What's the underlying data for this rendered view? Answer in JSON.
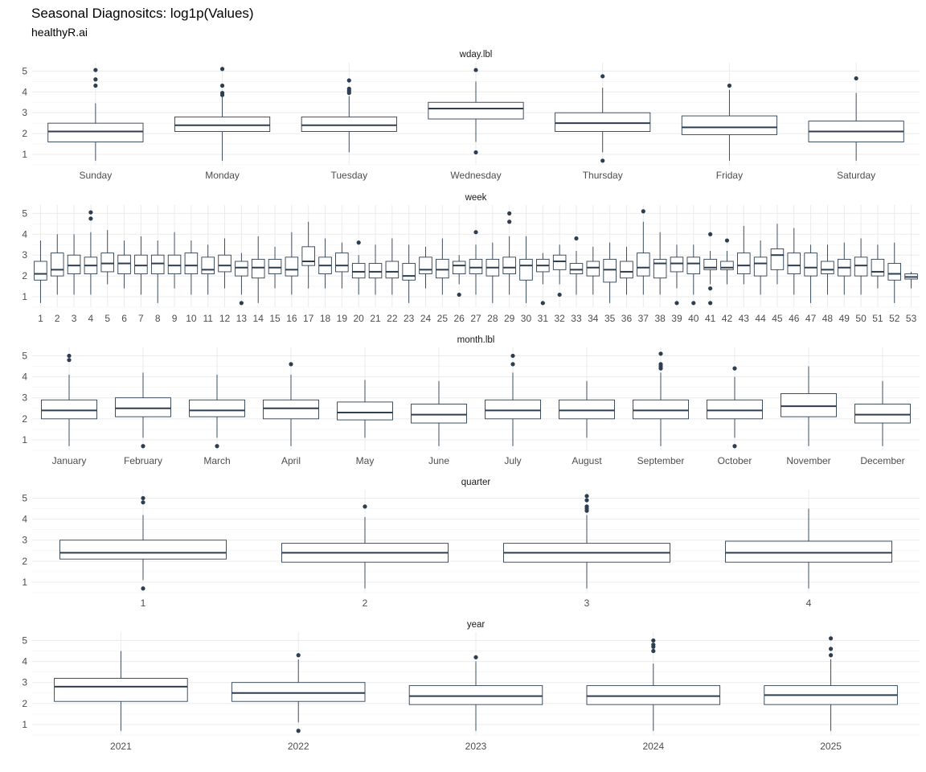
{
  "title": "Seasonal Diagnositcs: log1p(Values)",
  "subtitle": "healthyR.ai",
  "colors": {
    "box_stroke": "#2c3e50",
    "grid": "#ebebeb",
    "background": "#ffffff"
  },
  "chart_data": [
    {
      "type": "boxplot",
      "facet": "wday.lbl",
      "ylim": [
        0.5,
        5.4
      ],
      "yticks": [
        1,
        2,
        3,
        4,
        5
      ],
      "grid": true,
      "categories": [
        "Sunday",
        "Monday",
        "Tuesday",
        "Wednesday",
        "Thursday",
        "Friday",
        "Saturday"
      ],
      "boxes": [
        {
          "min": 0.7,
          "q1": 1.6,
          "median": 2.1,
          "q3": 2.5,
          "max": 3.45,
          "outliers": [
            4.3,
            4.6,
            5.05
          ]
        },
        {
          "min": 0.7,
          "q1": 2.1,
          "median": 2.4,
          "q3": 2.8,
          "max": 3.75,
          "outliers": [
            3.85,
            3.95,
            4.3,
            5.1
          ]
        },
        {
          "min": 1.1,
          "q1": 2.1,
          "median": 2.4,
          "q3": 2.8,
          "max": 3.8,
          "outliers": [
            3.95,
            4.05,
            4.15,
            4.55
          ]
        },
        {
          "min": 1.6,
          "q1": 2.7,
          "median": 3.2,
          "q3": 3.5,
          "max": 4.5,
          "outliers": [
            1.1,
            5.05
          ]
        },
        {
          "min": 1.1,
          "q1": 2.1,
          "median": 2.5,
          "q3": 3.0,
          "max": 4.2,
          "outliers": [
            0.7,
            4.75
          ]
        },
        {
          "min": 0.7,
          "q1": 1.95,
          "median": 2.3,
          "q3": 2.85,
          "max": 4.1,
          "outliers": [
            4.3
          ]
        },
        {
          "min": 0.7,
          "q1": 1.6,
          "median": 2.1,
          "q3": 2.6,
          "max": 3.95,
          "outliers": [
            4.65
          ]
        }
      ]
    },
    {
      "type": "boxplot",
      "facet": "week",
      "ylim": [
        0.5,
        5.4
      ],
      "yticks": [
        1,
        2,
        3,
        4,
        5
      ],
      "grid": true,
      "categories": [
        "1",
        "2",
        "3",
        "4",
        "5",
        "6",
        "7",
        "8",
        "9",
        "10",
        "11",
        "12",
        "13",
        "14",
        "15",
        "16",
        "17",
        "18",
        "19",
        "20",
        "21",
        "22",
        "23",
        "24",
        "25",
        "26",
        "27",
        "28",
        "29",
        "30",
        "31",
        "32",
        "33",
        "34",
        "35",
        "36",
        "37",
        "38",
        "39",
        "40",
        "41",
        "42",
        "43",
        "44",
        "45",
        "46",
        "47",
        "48",
        "49",
        "50",
        "51",
        "52",
        "53"
      ],
      "boxes": [
        {
          "min": 0.7,
          "q1": 1.8,
          "median": 2.1,
          "q3": 2.7,
          "max": 3.7,
          "outliers": []
        },
        {
          "min": 1.1,
          "q1": 2.0,
          "median": 2.3,
          "q3": 3.1,
          "max": 4.0,
          "outliers": []
        },
        {
          "min": 1.1,
          "q1": 2.1,
          "median": 2.5,
          "q3": 3.0,
          "max": 4.0,
          "outliers": []
        },
        {
          "min": 1.1,
          "q1": 2.1,
          "median": 2.5,
          "q3": 2.9,
          "max": 4.1,
          "outliers": [
            4.75,
            5.05
          ]
        },
        {
          "min": 1.6,
          "q1": 2.2,
          "median": 2.6,
          "q3": 3.1,
          "max": 4.2,
          "outliers": []
        },
        {
          "min": 1.4,
          "q1": 2.1,
          "median": 2.6,
          "q3": 3.0,
          "max": 3.7,
          "outliers": []
        },
        {
          "min": 1.1,
          "q1": 2.1,
          "median": 2.5,
          "q3": 3.0,
          "max": 3.9,
          "outliers": []
        },
        {
          "min": 0.7,
          "q1": 2.1,
          "median": 2.6,
          "q3": 3.0,
          "max": 3.7,
          "outliers": []
        },
        {
          "min": 1.4,
          "q1": 2.1,
          "median": 2.5,
          "q3": 3.0,
          "max": 4.1,
          "outliers": []
        },
        {
          "min": 1.1,
          "q1": 2.1,
          "median": 2.5,
          "q3": 3.1,
          "max": 3.7,
          "outliers": []
        },
        {
          "min": 1.1,
          "q1": 2.1,
          "median": 2.3,
          "q3": 2.9,
          "max": 3.5,
          "outliers": []
        },
        {
          "min": 1.4,
          "q1": 2.2,
          "median": 2.5,
          "q3": 3.0,
          "max": 3.8,
          "outliers": []
        },
        {
          "min": 1.1,
          "q1": 2.0,
          "median": 2.4,
          "q3": 2.7,
          "max": 3.1,
          "outliers": [
            0.7
          ]
        },
        {
          "min": 0.7,
          "q1": 1.9,
          "median": 2.4,
          "q3": 2.8,
          "max": 3.9,
          "outliers": []
        },
        {
          "min": 1.4,
          "q1": 2.1,
          "median": 2.4,
          "q3": 2.8,
          "max": 3.4,
          "outliers": []
        },
        {
          "min": 1.1,
          "q1": 2.0,
          "median": 2.3,
          "q3": 2.9,
          "max": 4.1,
          "outliers": []
        },
        {
          "min": 1.4,
          "q1": 2.5,
          "median": 2.7,
          "q3": 3.4,
          "max": 4.6,
          "outliers": []
        },
        {
          "min": 1.4,
          "q1": 2.1,
          "median": 2.5,
          "q3": 2.9,
          "max": 3.8,
          "outliers": []
        },
        {
          "min": 1.4,
          "q1": 2.2,
          "median": 2.5,
          "q3": 3.1,
          "max": 3.6,
          "outliers": []
        },
        {
          "min": 1.1,
          "q1": 1.9,
          "median": 2.2,
          "q3": 2.6,
          "max": 3.0,
          "outliers": [
            3.6
          ]
        },
        {
          "min": 1.1,
          "q1": 1.9,
          "median": 2.2,
          "q3": 2.6,
          "max": 3.5,
          "outliers": []
        },
        {
          "min": 1.1,
          "q1": 1.9,
          "median": 2.2,
          "q3": 2.7,
          "max": 3.8,
          "outliers": []
        },
        {
          "min": 0.7,
          "q1": 1.8,
          "median": 2.0,
          "q3": 2.6,
          "max": 3.5,
          "outliers": []
        },
        {
          "min": 1.4,
          "q1": 2.1,
          "median": 2.3,
          "q3": 2.9,
          "max": 3.4,
          "outliers": []
        },
        {
          "min": 1.1,
          "q1": 1.9,
          "median": 2.3,
          "q3": 2.8,
          "max": 3.8,
          "outliers": []
        },
        {
          "min": 1.6,
          "q1": 2.1,
          "median": 2.5,
          "q3": 2.7,
          "max": 3.0,
          "outliers": [
            1.1
          ]
        },
        {
          "min": 1.1,
          "q1": 2.1,
          "median": 2.4,
          "q3": 2.8,
          "max": 3.5,
          "outliers": [
            4.1
          ]
        },
        {
          "min": 0.7,
          "q1": 2.0,
          "median": 2.4,
          "q3": 2.8,
          "max": 3.6,
          "outliers": []
        },
        {
          "min": 1.1,
          "q1": 2.1,
          "median": 2.4,
          "q3": 2.9,
          "max": 3.9,
          "outliers": [
            4.6,
            5.0
          ]
        },
        {
          "min": 0.7,
          "q1": 1.8,
          "median": 2.5,
          "q3": 2.8,
          "max": 3.9,
          "outliers": []
        },
        {
          "min": 1.6,
          "q1": 2.2,
          "median": 2.5,
          "q3": 2.8,
          "max": 3.1,
          "outliers": [
            0.7
          ]
        },
        {
          "min": 1.6,
          "q1": 2.3,
          "median": 2.7,
          "q3": 3.0,
          "max": 3.5,
          "outliers": [
            1.1
          ]
        },
        {
          "min": 1.1,
          "q1": 2.1,
          "median": 2.3,
          "q3": 2.6,
          "max": 3.2,
          "outliers": [
            3.8
          ]
        },
        {
          "min": 1.1,
          "q1": 2.0,
          "median": 2.4,
          "q3": 2.7,
          "max": 3.4,
          "outliers": []
        },
        {
          "min": 0.7,
          "q1": 1.7,
          "median": 2.3,
          "q3": 2.8,
          "max": 3.6,
          "outliers": []
        },
        {
          "min": 1.1,
          "q1": 1.9,
          "median": 2.2,
          "q3": 2.7,
          "max": 3.4,
          "outliers": []
        },
        {
          "min": 1.1,
          "q1": 2.0,
          "median": 2.4,
          "q3": 3.1,
          "max": 4.6,
          "outliers": [
            5.1
          ]
        },
        {
          "min": 1.1,
          "q1": 1.9,
          "median": 2.6,
          "q3": 2.8,
          "max": 4.1,
          "outliers": []
        },
        {
          "min": 1.4,
          "q1": 2.2,
          "median": 2.6,
          "q3": 2.9,
          "max": 3.5,
          "outliers": [
            0.7
          ]
        },
        {
          "min": 1.1,
          "q1": 2.1,
          "median": 2.6,
          "q3": 2.9,
          "max": 3.5,
          "outliers": [
            0.7
          ]
        },
        {
          "min": 1.6,
          "q1": 2.3,
          "median": 2.4,
          "q3": 2.8,
          "max": 3.2,
          "outliers": [
            0.7,
            1.4,
            4.0
          ]
        },
        {
          "min": 1.6,
          "q1": 2.3,
          "median": 2.4,
          "q3": 2.7,
          "max": 3.2,
          "outliers": [
            3.7
          ]
        },
        {
          "min": 1.6,
          "q1": 2.1,
          "median": 2.5,
          "q3": 3.1,
          "max": 4.4,
          "outliers": []
        },
        {
          "min": 1.1,
          "q1": 2.0,
          "median": 2.6,
          "q3": 2.9,
          "max": 3.7,
          "outliers": []
        },
        {
          "min": 1.6,
          "q1": 2.3,
          "median": 3.0,
          "q3": 3.3,
          "max": 4.5,
          "outliers": []
        },
        {
          "min": 1.1,
          "q1": 2.1,
          "median": 2.5,
          "q3": 3.1,
          "max": 4.3,
          "outliers": []
        },
        {
          "min": 0.7,
          "q1": 2.0,
          "median": 2.4,
          "q3": 3.1,
          "max": 3.5,
          "outliers": []
        },
        {
          "min": 1.1,
          "q1": 2.1,
          "median": 2.3,
          "q3": 2.7,
          "max": 3.5,
          "outliers": []
        },
        {
          "min": 1.1,
          "q1": 2.0,
          "median": 2.4,
          "q3": 2.8,
          "max": 3.6,
          "outliers": []
        },
        {
          "min": 1.1,
          "q1": 2.0,
          "median": 2.5,
          "q3": 2.9,
          "max": 3.8,
          "outliers": []
        },
        {
          "min": 1.4,
          "q1": 2.0,
          "median": 2.2,
          "q3": 2.8,
          "max": 3.5,
          "outliers": []
        },
        {
          "min": 0.7,
          "q1": 1.8,
          "median": 2.1,
          "q3": 2.6,
          "max": 3.6,
          "outliers": []
        },
        {
          "min": 1.4,
          "q1": 1.85,
          "median": 1.95,
          "q3": 2.1,
          "max": 2.2,
          "outliers": []
        }
      ]
    },
    {
      "type": "boxplot",
      "facet": "month.lbl",
      "ylim": [
        0.5,
        5.4
      ],
      "yticks": [
        1,
        2,
        3,
        4,
        5
      ],
      "grid": true,
      "categories": [
        "January",
        "February",
        "March",
        "April",
        "May",
        "June",
        "July",
        "August",
        "September",
        "October",
        "November",
        "December"
      ],
      "boxes": [
        {
          "min": 0.7,
          "q1": 2.0,
          "median": 2.4,
          "q3": 2.9,
          "max": 4.1,
          "outliers": [
            4.8,
            5.0
          ]
        },
        {
          "min": 1.1,
          "q1": 2.1,
          "median": 2.5,
          "q3": 3.0,
          "max": 4.2,
          "outliers": [
            0.7
          ]
        },
        {
          "min": 1.1,
          "q1": 2.1,
          "median": 2.4,
          "q3": 2.9,
          "max": 4.1,
          "outliers": [
            0.7
          ]
        },
        {
          "min": 0.7,
          "q1": 2.0,
          "median": 2.5,
          "q3": 2.9,
          "max": 4.1,
          "outliers": [
            4.6
          ]
        },
        {
          "min": 1.1,
          "q1": 1.95,
          "median": 2.3,
          "q3": 2.8,
          "max": 3.85,
          "outliers": []
        },
        {
          "min": 0.7,
          "q1": 1.8,
          "median": 2.2,
          "q3": 2.7,
          "max": 3.8,
          "outliers": []
        },
        {
          "min": 0.7,
          "q1": 2.0,
          "median": 2.4,
          "q3": 2.9,
          "max": 4.2,
          "outliers": [
            4.6,
            5.0
          ]
        },
        {
          "min": 1.1,
          "q1": 2.0,
          "median": 2.4,
          "q3": 2.9,
          "max": 3.8,
          "outliers": []
        },
        {
          "min": 0.7,
          "q1": 2.0,
          "median": 2.4,
          "q3": 2.9,
          "max": 4.2,
          "outliers": [
            4.4,
            4.5,
            4.6,
            5.1
          ]
        },
        {
          "min": 1.1,
          "q1": 2.0,
          "median": 2.4,
          "q3": 2.9,
          "max": 4.0,
          "outliers": [
            0.7,
            4.4
          ]
        },
        {
          "min": 0.7,
          "q1": 2.1,
          "median": 2.6,
          "q3": 3.2,
          "max": 4.5,
          "outliers": []
        },
        {
          "min": 0.7,
          "q1": 1.8,
          "median": 2.2,
          "q3": 2.7,
          "max": 3.8,
          "outliers": []
        }
      ]
    },
    {
      "type": "boxplot",
      "facet": "quarter",
      "ylim": [
        0.5,
        5.4
      ],
      "yticks": [
        1,
        2,
        3,
        4,
        5
      ],
      "grid": true,
      "categories": [
        "1",
        "2",
        "3",
        "4"
      ],
      "boxes": [
        {
          "min": 1.1,
          "q1": 2.1,
          "median": 2.4,
          "q3": 3.0,
          "max": 4.2,
          "outliers": [
            0.7,
            4.8,
            5.0
          ]
        },
        {
          "min": 0.7,
          "q1": 1.95,
          "median": 2.4,
          "q3": 2.85,
          "max": 4.1,
          "outliers": [
            4.6
          ]
        },
        {
          "min": 0.7,
          "q1": 1.95,
          "median": 2.4,
          "q3": 2.85,
          "max": 4.2,
          "outliers": [
            4.4,
            4.5,
            4.6,
            4.9,
            5.1
          ]
        },
        {
          "min": 0.7,
          "q1": 1.95,
          "median": 2.4,
          "q3": 2.95,
          "max": 4.5,
          "outliers": []
        }
      ]
    },
    {
      "type": "boxplot",
      "facet": "year",
      "ylim": [
        0.5,
        5.4
      ],
      "yticks": [
        1,
        2,
        3,
        4,
        5
      ],
      "grid": true,
      "categories": [
        "2021",
        "2022",
        "2023",
        "2024",
        "2025"
      ],
      "boxes": [
        {
          "min": 0.7,
          "q1": 2.1,
          "median": 2.8,
          "q3": 3.2,
          "max": 4.5,
          "outliers": []
        },
        {
          "min": 1.1,
          "q1": 2.1,
          "median": 2.5,
          "q3": 3.0,
          "max": 4.1,
          "outliers": [
            0.7,
            4.3
          ]
        },
        {
          "min": 0.7,
          "q1": 1.95,
          "median": 2.35,
          "q3": 2.85,
          "max": 4.0,
          "outliers": [
            4.2
          ]
        },
        {
          "min": 0.7,
          "q1": 1.95,
          "median": 2.35,
          "q3": 2.85,
          "max": 3.9,
          "outliers": [
            4.5,
            4.7,
            4.8,
            5.0
          ]
        },
        {
          "min": 0.7,
          "q1": 1.95,
          "median": 2.4,
          "q3": 2.85,
          "max": 4.1,
          "outliers": [
            4.3,
            4.6,
            5.1
          ]
        }
      ]
    }
  ]
}
